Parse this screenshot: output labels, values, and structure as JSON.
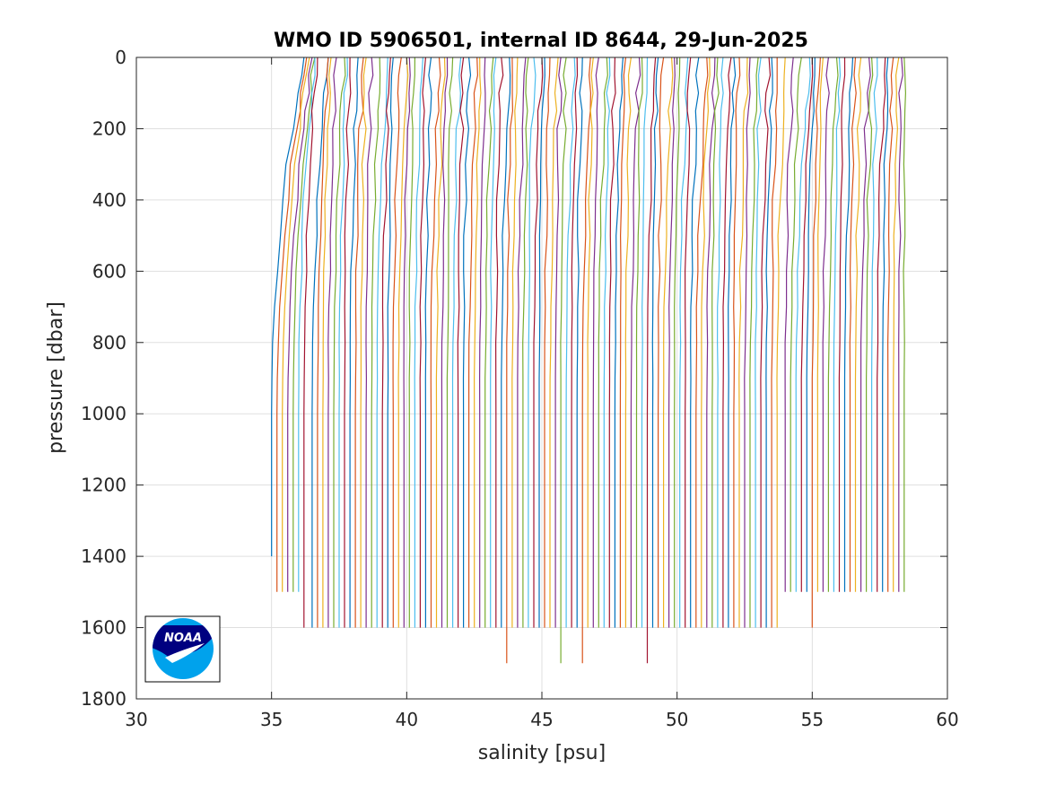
{
  "chart_data": {
    "type": "line",
    "title": "WMO ID 5906501, internal ID 8644, 29-Jun-2025",
    "xlabel": "salinity [psu]",
    "ylabel": "pressure [dbar]",
    "xlim": [
      30,
      60
    ],
    "ylim": [
      0,
      1800
    ],
    "y_reversed": true,
    "grid": true,
    "legend": "none",
    "x_ticks": [
      "30",
      "35",
      "40",
      "45",
      "50",
      "55",
      "60"
    ],
    "y_ticks": [
      "0",
      "200",
      "400",
      "600",
      "800",
      "1000",
      "1200",
      "1400",
      "1600",
      "1800"
    ],
    "pressure_levels": [
      0,
      50,
      100,
      150,
      200,
      300,
      400,
      500,
      600,
      700,
      800,
      900,
      1000,
      1200,
      1400,
      1500,
      1600
    ],
    "profile_deep_salinity": [
      35.0,
      35.2,
      35.4,
      35.6,
      35.8,
      36.0,
      36.2,
      36.5,
      36.7,
      36.9,
      37.1,
      37.3,
      37.5,
      37.7,
      37.9,
      38.1,
      38.3,
      38.5,
      38.7,
      38.9,
      39.1,
      39.3,
      39.5,
      39.7,
      39.9,
      40.1,
      40.3,
      40.5,
      40.7,
      40.9,
      41.1,
      41.3,
      41.5,
      41.7,
      41.9,
      42.1,
      42.3,
      42.5,
      42.7,
      42.9,
      43.1,
      43.3,
      43.5,
      43.7,
      43.9,
      44.1,
      44.3,
      44.5,
      44.7,
      44.9,
      45.1,
      45.3,
      45.5,
      45.7,
      45.9,
      46.1,
      46.3,
      46.5,
      46.7,
      46.9,
      47.1,
      47.3,
      47.5,
      47.7,
      47.9,
      48.1,
      48.3,
      48.5,
      48.7,
      48.9,
      49.1,
      49.3,
      49.5,
      49.7,
      49.9,
      50.1,
      50.3,
      50.5,
      50.7,
      50.9,
      51.1,
      51.3,
      51.5,
      51.7,
      51.9,
      52.1,
      52.3,
      52.5,
      52.7,
      52.9,
      53.1,
      53.3,
      53.5,
      53.7,
      54.0,
      54.2,
      54.4,
      54.6,
      54.8,
      55.0,
      55.2,
      55.4,
      55.6,
      55.8,
      56.0,
      56.2,
      56.4,
      56.6,
      56.8,
      57.0,
      57.2,
      57.4,
      57.6,
      57.8,
      58.0,
      58.2,
      58.4
    ],
    "profile_max_pressure": [
      1400,
      1500,
      1500,
      1500,
      1500,
      1500,
      1600,
      1600,
      1600,
      1600,
      1600,
      1600,
      1600,
      1600,
      1600,
      1600,
      1600,
      1600,
      1600,
      1600,
      1600,
      1600,
      1600,
      1600,
      1600,
      1600,
      1600,
      1600,
      1600,
      1600,
      1600,
      1600,
      1600,
      1600,
      1600,
      1600,
      1600,
      1600,
      1600,
      1600,
      1600,
      1600,
      1600,
      1700,
      1600,
      1600,
      1600,
      1600,
      1600,
      1600,
      1600,
      1600,
      1600,
      1700,
      1600,
      1600,
      1600,
      1700,
      1600,
      1600,
      1600,
      1600,
      1600,
      1600,
      1600,
      1600,
      1600,
      1600,
      1600,
      1700,
      1600,
      1600,
      1600,
      1600,
      1600,
      1600,
      1600,
      1600,
      1600,
      1600,
      1600,
      1600,
      1600,
      1600,
      1600,
      1600,
      1600,
      1600,
      1600,
      1600,
      1600,
      1600,
      1600,
      1600,
      1500,
      1500,
      1500,
      1500,
      1500,
      1600,
      1500,
      1500,
      1500,
      1500,
      1500,
      1500,
      1500,
      1500,
      1500,
      1500,
      1500,
      1500,
      1500,
      1500,
      1500,
      1500,
      1500
    ],
    "profile_surface_offset": [
      1.2,
      1.1,
      1.0,
      0.9,
      0.8,
      0.6,
      0.5,
      0.6,
      0.4,
      0.3,
      0.3,
      0.4,
      0.3,
      0.2,
      0.3,
      0.3,
      0.2,
      0.2,
      0.3,
      0.4,
      0.3,
      0.2,
      0.3,
      0.3,
      0.2,
      0.2,
      0.3,
      0.2,
      0.2,
      0.3,
      0.3,
      0.2,
      0.2,
      0.3,
      0.2,
      0.2,
      0.3,
      0.2,
      0.2,
      0.3,
      0.2,
      0.2,
      0.3,
      0.2,
      0.2,
      0.3,
      0.2,
      0.2,
      0.3,
      0.2,
      0.2,
      0.3,
      0.2,
      0.2,
      0.3,
      0.2,
      0.2,
      0.3,
      0.2,
      0.2,
      0.3,
      0.2,
      0.2,
      0.3,
      0.2,
      0.2,
      0.3,
      0.2,
      0.2,
      0.3,
      0.2,
      0.2,
      0.3,
      0.2,
      0.2,
      0.3,
      0.2,
      0.3,
      0.4,
      0.3,
      0.3,
      0.2,
      0.2,
      0.3,
      0.2,
      0.2,
      0.3,
      0.2,
      0.3,
      0.2,
      0.3,
      0.2,
      0.2,
      0.3,
      0.3,
      0.4,
      0.5,
      0.4,
      0.3,
      0.3,
      0.2,
      0.2,
      0.3,
      0.2,
      0.2,
      0.3,
      0.2,
      0.2,
      0.3,
      0.2,
      0.2,
      0.3,
      0.2,
      0.2,
      0.2,
      0.1,
      0.0
    ],
    "series_colors": [
      "#0072bd",
      "#d95319",
      "#edb120",
      "#7e2f8e",
      "#77ac30",
      "#4dbeee",
      "#a2142f"
    ]
  },
  "logo": {
    "label": "NOAA",
    "colors": {
      "navy": "#000080",
      "sky": "#00a2ec",
      "white": "#ffffff"
    }
  }
}
